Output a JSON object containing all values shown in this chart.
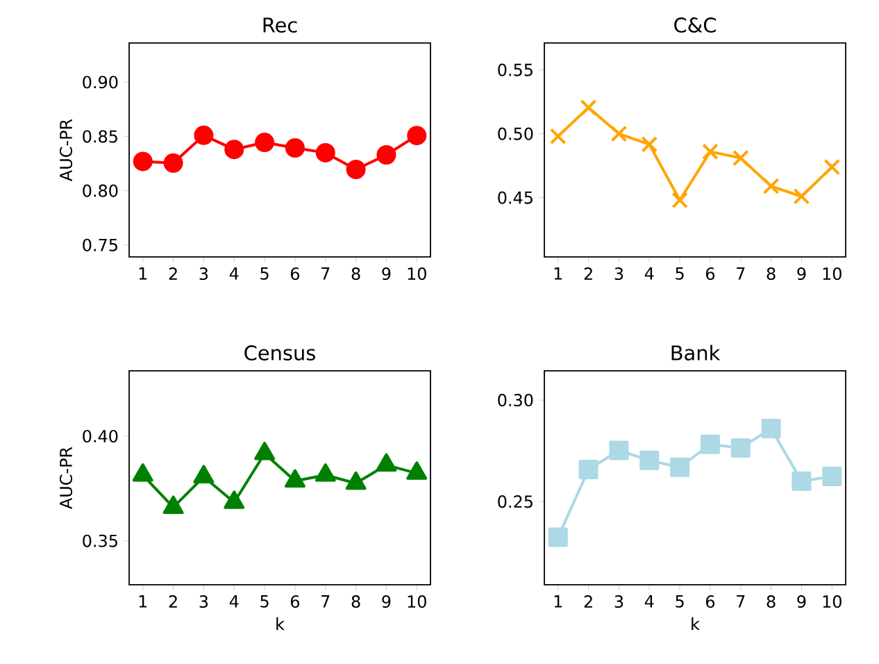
{
  "chart_data": [
    {
      "type": "line",
      "title": "Rec",
      "ylabel": "AUC-PR",
      "categories": [
        "1",
        "2",
        "3",
        "4",
        "5",
        "6",
        "7",
        "8",
        "9",
        "10"
      ],
      "color": "#ff0000",
      "marker": "circle",
      "line_style": "solid",
      "values": [
        0.827,
        0.8255,
        0.851,
        0.838,
        0.8445,
        0.8394,
        0.835,
        0.8196,
        0.833,
        0.8508
      ],
      "ylim": [
        0.739,
        0.936
      ],
      "yticks": [
        {
          "value": 0.75,
          "label": "0.75"
        },
        {
          "value": 0.8,
          "label": "0.80"
        },
        {
          "value": 0.85,
          "label": "0.85"
        },
        {
          "value": 0.9,
          "label": "0.90"
        }
      ]
    },
    {
      "type": "line",
      "title": "C&C",
      "categories": [
        "1",
        "2",
        "3",
        "4",
        "5",
        "6",
        "7",
        "8",
        "9",
        "10"
      ],
      "color": "#ffa500",
      "marker": "cross",
      "line_style": "solid",
      "values": [
        0.498,
        0.5205,
        0.5,
        0.4917,
        0.448,
        0.486,
        0.481,
        0.459,
        0.451,
        0.474
      ],
      "ylim": [
        0.4036,
        0.571
      ],
      "yticks": [
        {
          "value": 0.45,
          "label": "0.45"
        },
        {
          "value": 0.5,
          "label": "0.50"
        },
        {
          "value": 0.55,
          "label": "0.55"
        }
      ]
    },
    {
      "type": "line",
      "title": "Census",
      "xlabel": "k",
      "ylabel": "AUC-PR",
      "categories": [
        "1",
        "2",
        "3",
        "4",
        "5",
        "6",
        "7",
        "8",
        "9",
        "10"
      ],
      "color": "#008000",
      "marker": "triangle",
      "line_style": "solid",
      "values": [
        0.3814,
        0.366,
        0.3806,
        0.3684,
        0.3917,
        0.3786,
        0.3814,
        0.3775,
        0.3862,
        0.3823
      ],
      "ylim": [
        0.329,
        0.4312
      ],
      "yticks": [
        {
          "value": 0.35,
          "label": "0.35"
        },
        {
          "value": 0.4,
          "label": "0.40"
        }
      ]
    },
    {
      "type": "line",
      "title": "Bank",
      "xlabel": "k",
      "categories": [
        "1",
        "2",
        "3",
        "4",
        "5",
        "6",
        "7",
        "8",
        "9",
        "10"
      ],
      "color": "#add8e6",
      "marker": "square",
      "line_style": "solid",
      "values": [
        0.2324,
        0.2658,
        0.2752,
        0.2703,
        0.2669,
        0.2782,
        0.2764,
        0.286,
        0.2601,
        0.2624
      ],
      "ylim": [
        0.209,
        0.3144
      ],
      "yticks": [
        {
          "value": 0.25,
          "label": "0.25"
        },
        {
          "value": 0.3,
          "label": "0.30"
        }
      ]
    }
  ]
}
